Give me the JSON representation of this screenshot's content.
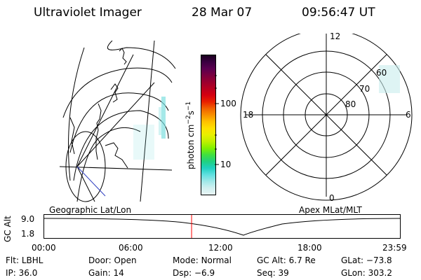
{
  "header": {
    "title": "Ultraviolet Imager",
    "date": "28 Mar 07",
    "time": "09:56:47 UT"
  },
  "colorbar": {
    "unit_label": "photon cm",
    "unit_sup1": "−2",
    "unit_mid": "s",
    "unit_sup2": "−1",
    "ticks": [
      "100",
      "10"
    ],
    "colors": [
      "#1a0020",
      "#3a0040",
      "#5a0050",
      "#7a0040",
      "#9a0030",
      "#b80020",
      "#d40010",
      "#e82000",
      "#f06000",
      "#f89000",
      "#ffc000",
      "#ffe000",
      "#e8f000",
      "#c0f000",
      "#80f000",
      "#40e040",
      "#20d080",
      "#20d0c0",
      "#60e0e0",
      "#a0e8e8",
      "#d0f0f0",
      "#e8f4f4"
    ]
  },
  "geo_panel": {
    "label": "Geographic Lat/Lon"
  },
  "polar_panel": {
    "label": "Apex MLat/MLT",
    "mlt_labels": {
      "top": "12",
      "left": "18",
      "right": "6",
      "bottom": "0"
    },
    "lat_labels": [
      "60",
      "70",
      "80"
    ]
  },
  "altitude_plot": {
    "ylabel": "GC Alt",
    "yticks": [
      "9.0",
      "1.8"
    ],
    "xticks": [
      "00:00",
      "06:00",
      "12:00",
      "18:00",
      "23:59"
    ],
    "current_time_fraction": 0.4143
  },
  "info": {
    "row1": [
      {
        "label": "Flt:",
        "value": "LBHL"
      },
      {
        "label": "Door:",
        "value": "Open"
      },
      {
        "label": "Mode:",
        "value": "Normal"
      },
      {
        "label": "GC Alt:",
        "value": "6.7 Re"
      },
      {
        "label": "GLat:",
        "value": "−73.8"
      }
    ],
    "row2": [
      {
        "label": "IP:",
        "value": "36.0"
      },
      {
        "label": "Gain:",
        "value": "14"
      },
      {
        "label": "Dsp:",
        "value": "−6.9"
      },
      {
        "label": "Seq:",
        "value": "39"
      },
      {
        "label": "GLon:",
        "value": "303.2"
      }
    ]
  }
}
